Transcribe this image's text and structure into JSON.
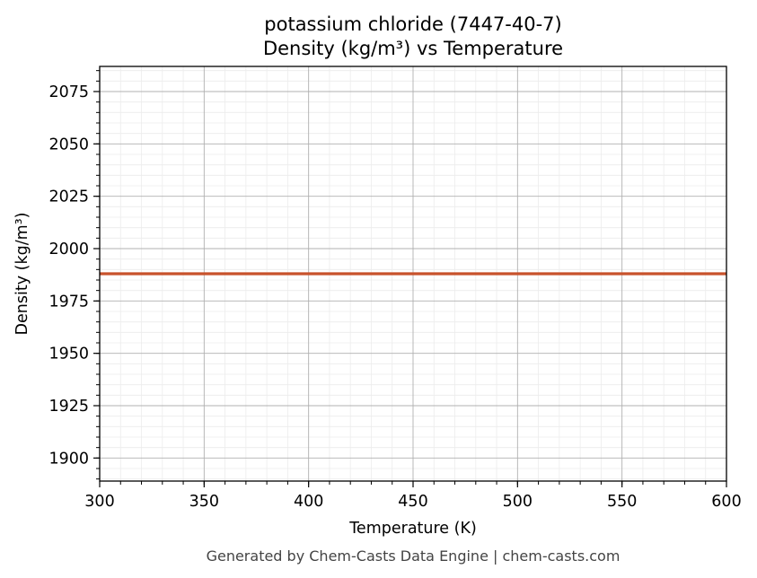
{
  "chart_data": {
    "type": "line",
    "title_line1": "potassium chloride (7447-40-7)",
    "title_line2": "Density (kg/m³) vs Temperature",
    "xlabel": "Temperature (K)",
    "ylabel": "Density (kg/m³)",
    "xlim": [
      300,
      600
    ],
    "ylim": [
      1889,
      2087
    ],
    "x_ticks": [
      300,
      350,
      400,
      450,
      500,
      550,
      600
    ],
    "y_ticks": [
      1900,
      1925,
      1950,
      1975,
      2000,
      2025,
      2050,
      2075
    ],
    "x_minor_step": 10,
    "y_minor_step": 5,
    "grid": true,
    "series": [
      {
        "color": "#c8522b",
        "x": [
          300,
          600
        ],
        "y": [
          1988,
          1988
        ]
      }
    ]
  },
  "footer": "Generated by Chem-Casts Data Engine | chem-casts.com"
}
